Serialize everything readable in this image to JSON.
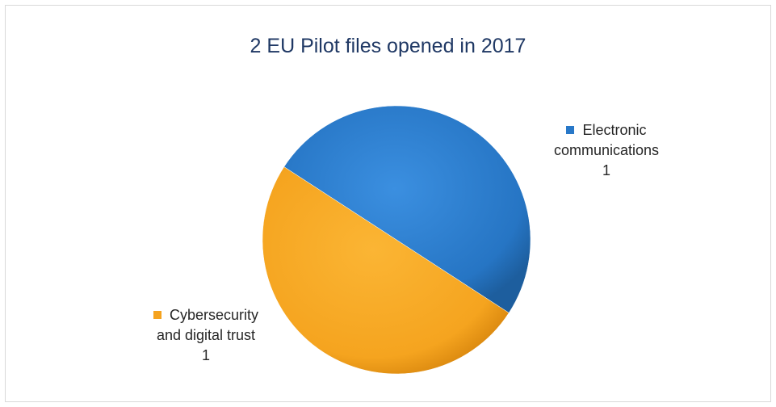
{
  "chart_data": {
    "type": "pie",
    "title": "2 EU Pilot files opened in 2017",
    "slices": [
      {
        "label_line1": "Electronic",
        "label_line2": "communications",
        "value": 1,
        "value_text": "1",
        "color": "#2878c8"
      },
      {
        "label_line1": "Cybersecurity",
        "label_line2": "and digital trust",
        "value": 1,
        "value_text": "1",
        "color": "#f5a31f"
      }
    ]
  }
}
